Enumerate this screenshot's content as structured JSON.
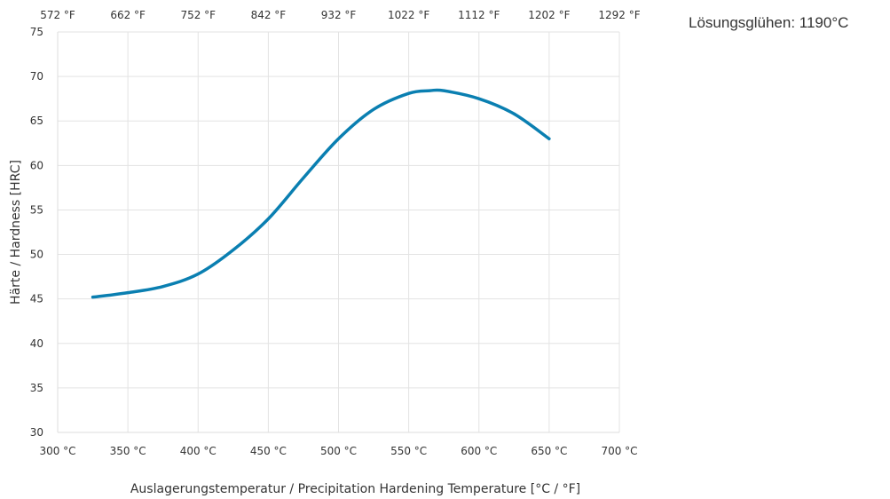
{
  "chart_data": {
    "type": "line",
    "title": "",
    "annotation": "Lösungsglühen: 1190°C",
    "xlabel": "Auslagerungstemperatur / Precipitation Hardening Temperature [°C / °F]",
    "ylabel": "Härte / Hardness [HRC]",
    "xlim": [
      300,
      700
    ],
    "ylim": [
      30,
      75
    ],
    "x_ticks": [
      300,
      350,
      400,
      450,
      500,
      550,
      600,
      650,
      700
    ],
    "x_tick_labels": [
      "300 °C",
      "350 °C",
      "400 °C",
      "450 °C",
      "500 °C",
      "550 °C",
      "600 °C",
      "650 °C",
      "700 °C"
    ],
    "x2_tick_labels": [
      "572 °F",
      "662 °F",
      "752 °F",
      "842 °F",
      "932 °F",
      "1022 °F",
      "1112 °F",
      "1202 °F",
      "1292 °F"
    ],
    "y_ticks": [
      30,
      35,
      40,
      45,
      50,
      55,
      60,
      65,
      70,
      75
    ],
    "y_tick_labels": [
      "30",
      "35",
      "40",
      "45",
      "50",
      "55",
      "60",
      "65",
      "70",
      "75"
    ],
    "grid": true,
    "legend": "none",
    "series": [
      {
        "color": "#0a7fb1",
        "x": [
          325,
          350,
          375,
          400,
          425,
          450,
          475,
          500,
          525,
          550,
          565,
          575,
          600,
          625,
          650
        ],
        "y": [
          45.2,
          45.7,
          46.4,
          47.8,
          50.5,
          54.0,
          58.6,
          63.0,
          66.3,
          68.1,
          68.4,
          68.4,
          67.5,
          65.8,
          63.0
        ]
      }
    ]
  }
}
